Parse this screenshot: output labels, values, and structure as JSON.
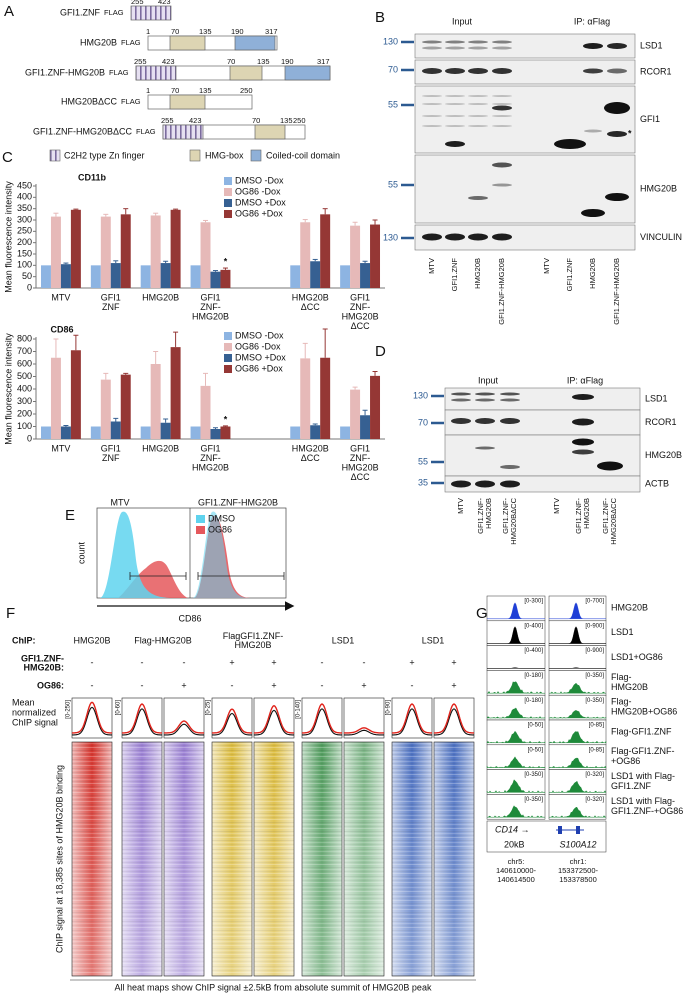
{
  "panel_a": {
    "label": "A",
    "constructs": [
      {
        "name": "GFI1.ZNF",
        "tag": "FLAG",
        "numbers": [
          255,
          423
        ]
      },
      {
        "name": "HMG20B",
        "tag": "FLAG",
        "numbers": [
          1,
          70,
          135,
          190,
          317
        ]
      },
      {
        "name": "GFI1.ZNF-HMG20B",
        "tag": "FLAG",
        "numbers": [
          255,
          423,
          70,
          135,
          190,
          317
        ]
      },
      {
        "name": "HMG20BΔCC",
        "tag": "FLAG",
        "numbers": [
          1,
          70,
          135,
          250
        ]
      },
      {
        "name": "GFI1.ZNF-HMG20BΔCC",
        "tag": "FLAG",
        "numbers": [
          255,
          423,
          70,
          135,
          250
        ]
      }
    ],
    "legend": [
      "C2H2 type Zn finger",
      "HMG-box",
      "Coiled-coil domain"
    ]
  },
  "panel_b": {
    "label": "B",
    "groups": [
      "Input",
      "IP: αFlag"
    ],
    "rows": [
      "LSD1",
      "RCOR1",
      "GFI1",
      "HMG20B",
      "VINCULIN"
    ],
    "markers": [
      130,
      70,
      55,
      55,
      130
    ],
    "asterisk": "*",
    "lanes": [
      [
        "MTV"
      ],
      [
        "GFI1.ZNF"
      ],
      [
        "HMG20B"
      ],
      [
        "GFI1.ZNF-HMG20B"
      ],
      [
        "MTV"
      ],
      [
        "GFI1.ZNF"
      ],
      [
        "HMG20B"
      ],
      [
        "GFI1.ZNF-HMG20B"
      ]
    ]
  },
  "panel_c": {
    "label": "C"
  },
  "chart_data": [
    {
      "type": "bar",
      "title": "CD11b",
      "y_label": "Mean fluorescence intensity",
      "categories": [
        [
          "MTV"
        ],
        [
          "GFI1",
          "ZNF"
        ],
        [
          "HMG20B"
        ],
        [
          "GFI1",
          "ZNF-",
          "HMG20B"
        ],
        null,
        [
          "HMG20B",
          "ΔCC"
        ],
        [
          "GFI1",
          "ZNF-",
          "HMG20B",
          "ΔCC"
        ]
      ],
      "series": [
        {
          "name": "DMSO -Dox",
          "color": "#8db4e2",
          "values": [
            100,
            100,
            100,
            100,
            null,
            100,
            100
          ],
          "errors": [
            0,
            0,
            0,
            0,
            null,
            0,
            0
          ]
        },
        {
          "name": "OG86 -Dox",
          "color": "#e6b9b8",
          "values": [
            315,
            315,
            320,
            290,
            null,
            290,
            275
          ],
          "errors": [
            15,
            10,
            10,
            8,
            null,
            12,
            15
          ]
        },
        {
          "name": "DMSO +Dox",
          "color": "#366092",
          "values": [
            105,
            110,
            110,
            72,
            null,
            118,
            110
          ],
          "errors": [
            5,
            10,
            8,
            5,
            null,
            8,
            8
          ]
        },
        {
          "name": "OG86 +Dox",
          "color": "#953735",
          "values": [
            345,
            325,
            345,
            80,
            null,
            325,
            280
          ],
          "errors": [
            3,
            25,
            3,
            8,
            null,
            25,
            20
          ]
        }
      ],
      "ylim": [
        0,
        450
      ],
      "yticks": [
        0,
        50,
        100,
        150,
        200,
        250,
        300,
        350,
        400,
        450
      ],
      "annotations": [
        "*"
      ]
    },
    {
      "type": "bar",
      "title": "CD86",
      "y_label": "Mean fluorescence intensity",
      "categories": [
        [
          "MTV"
        ],
        [
          "GFI1",
          "ZNF"
        ],
        [
          "HMG20B"
        ],
        [
          "GFI1",
          "ZNF-",
          "HMG20B"
        ],
        null,
        [
          "HMG20B",
          "ΔCC"
        ],
        [
          "GFI1",
          "ZNF-",
          "HMG20B",
          "ΔCC"
        ]
      ],
      "series": [
        {
          "name": "DMSO -Dox",
          "color": "#8db4e2",
          "values": [
            100,
            100,
            100,
            100,
            null,
            100,
            100
          ],
          "errors": [
            0,
            0,
            0,
            0,
            null,
            0,
            0
          ]
        },
        {
          "name": "OG86 -Dox",
          "color": "#e6b9b8",
          "values": [
            650,
            475,
            600,
            425,
            null,
            645,
            395
          ],
          "errors": [
            150,
            50,
            100,
            100,
            null,
            120,
            20
          ]
        },
        {
          "name": "DMSO +Dox",
          "color": "#366092",
          "values": [
            100,
            140,
            130,
            80,
            null,
            110,
            190
          ],
          "errors": [
            8,
            25,
            30,
            10,
            null,
            10,
            40
          ]
        },
        {
          "name": "OG86 +Dox",
          "color": "#953735",
          "values": [
            710,
            515,
            735,
            100,
            null,
            650,
            505
          ],
          "errors": [
            120,
            10,
            120,
            5,
            null,
            230,
            35
          ]
        }
      ],
      "ylim": [
        0,
        800
      ],
      "yticks": [
        0,
        100,
        200,
        300,
        400,
        500,
        600,
        700,
        800
      ],
      "annotations": [
        "*"
      ]
    }
  ],
  "panel_d": {
    "label": "D",
    "groups": [
      "Input",
      "IP: αFlag"
    ],
    "rows": [
      "LSD1",
      "RCOR1",
      "HMG20B",
      "ACTB"
    ],
    "markers": [
      130,
      70,
      55,
      35
    ],
    "lanes": [
      [
        "MTV"
      ],
      [
        "GFI1.ZNF-",
        "HMG20B"
      ],
      [
        "GFI1.ZNF-",
        "HMG20BΔCC"
      ],
      [
        "MTV"
      ],
      [
        "GFI1.ZNF-",
        "HMG20B"
      ],
      [
        "GFI1.ZNF-",
        "HMG20BΔCC"
      ]
    ]
  },
  "panel_e": {
    "label": "E",
    "titles": [
      "MTV",
      "GFI1.ZNF-HMG20B"
    ],
    "legend": [
      {
        "name": "DMSO",
        "color": "#5fd3ee"
      },
      {
        "name": "OG86",
        "color": "#e5585c"
      }
    ],
    "y_label": "count",
    "x_label": "CD86"
  },
  "panel_f": {
    "label": "F",
    "chip_label": "ChIP:",
    "targets": [
      [
        "HMG20B"
      ],
      [
        "Flag-HMG20B"
      ],
      [
        "FlagGFI1.ZNF-",
        "HMG20B"
      ],
      [
        "LSD1"
      ],
      [
        "LSD1"
      ]
    ],
    "condition_labels": [
      [
        "GFI1.ZNF-",
        "HMG20B:"
      ],
      [
        "OG86:"
      ]
    ],
    "conditions": [
      [
        "-",
        "-",
        "-",
        "+",
        "+",
        "-",
        "-",
        "+",
        "+"
      ],
      [
        "-",
        "-",
        "+",
        "-",
        "+",
        "-",
        "+",
        "-",
        "+"
      ]
    ],
    "profile_label": [
      "Mean",
      "normalized",
      "ChIP signal"
    ],
    "scales": [
      "[0-250]",
      "[0-60]",
      "[0-25]",
      "[0-140]",
      "[0-90]"
    ],
    "heatmap_label": "ChIP signal at 18,385 sites of HMG20B binding",
    "caption": "All heat maps show ChIP signal ±2.5kB from absolute summit of HMG20B peak"
  },
  "panel_g": {
    "label": "G",
    "tracks": [
      {
        "name": [
          "HMG20B"
        ],
        "scales": [
          "[0-300]",
          "[0-700]"
        ],
        "color": "#1f3fd6"
      },
      {
        "name": [
          "LSD1"
        ],
        "scales": [
          "[0-400]",
          "[0-900]"
        ],
        "color": "#000000"
      },
      {
        "name": [
          "LSD1+OG86"
        ],
        "scales": [
          "[0-400]",
          "[0-900]"
        ],
        "color": "#000000"
      },
      {
        "name": [
          "Flag-",
          "HMG20B"
        ],
        "scales": [
          "[0-180]",
          "[0-350]"
        ],
        "color": "#1e8a3a"
      },
      {
        "name": [
          "Flag-",
          "HMG20B+OG86"
        ],
        "scales": [
          "[0-180]",
          "[0-350]"
        ],
        "color": "#1e8a3a"
      },
      {
        "name": [
          "Flag-GFI1.ZNF"
        ],
        "scales": [
          "[0-50]",
          "[0-85]"
        ],
        "color": "#1e8a3a"
      },
      {
        "name": [
          "Flag-GFI1.ZNF-",
          "+OG86"
        ],
        "scales": [
          "[0-50]",
          "[0-85]"
        ],
        "color": "#1e8a3a"
      },
      {
        "name": [
          "LSD1 with Flag-",
          "GFI1.ZNF"
        ],
        "scales": [
          "[0-350]",
          "[0-320]"
        ],
        "color": "#1e8a3a"
      },
      {
        "name": [
          "LSD1 with Flag-",
          "GFI1.ZNF-+OG86"
        ],
        "scales": [
          "[0-350]",
          "[0-320]"
        ],
        "color": "#1e8a3a"
      }
    ],
    "genes": [
      "CD14 →",
      "S100A12"
    ],
    "scale_bar": "20kB",
    "coordinates": [
      [
        "chr5:",
        "140610000-",
        "140614500"
      ],
      [
        "chr1:",
        "153372500-",
        "153378500"
      ]
    ]
  }
}
